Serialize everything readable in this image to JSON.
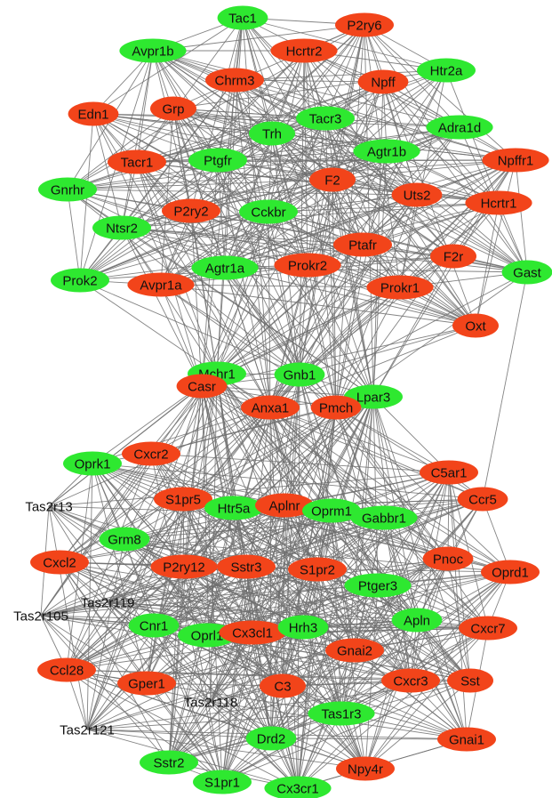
{
  "colors": {
    "up": "#f2441a",
    "down": "#2ee830",
    "edge": "#6e6e6e",
    "label": "#111111",
    "background": "#ffffff"
  },
  "nodes": [
    {
      "id": "Tac1",
      "color": "down"
    },
    {
      "id": "P2ry6",
      "color": "up"
    },
    {
      "id": "Hcrtr2",
      "color": "up"
    },
    {
      "id": "Avpr1b",
      "color": "down"
    },
    {
      "id": "Chrm3",
      "color": "up"
    },
    {
      "id": "Npff",
      "color": "up"
    },
    {
      "id": "Htr2a",
      "color": "down"
    },
    {
      "id": "Edn1",
      "color": "up"
    },
    {
      "id": "Grp",
      "color": "up"
    },
    {
      "id": "Tacr3",
      "color": "down"
    },
    {
      "id": "Adra1d",
      "color": "down"
    },
    {
      "id": "Trh",
      "color": "down"
    },
    {
      "id": "Agtr1b",
      "color": "down"
    },
    {
      "id": "Npffr1",
      "color": "up"
    },
    {
      "id": "Tacr1",
      "color": "up"
    },
    {
      "id": "Ptgfr",
      "color": "down"
    },
    {
      "id": "F2",
      "color": "up"
    },
    {
      "id": "Gnrhr",
      "color": "down"
    },
    {
      "id": "Uts2",
      "color": "up"
    },
    {
      "id": "Hcrtr1",
      "color": "up"
    },
    {
      "id": "P2ry2",
      "color": "up"
    },
    {
      "id": "Cckbr",
      "color": "down"
    },
    {
      "id": "Ntsr2",
      "color": "down"
    },
    {
      "id": "Ptafr",
      "color": "up"
    },
    {
      "id": "F2r",
      "color": "up"
    },
    {
      "id": "Gast",
      "color": "down"
    },
    {
      "id": "Prok2",
      "color": "down"
    },
    {
      "id": "Agtr1a",
      "color": "down"
    },
    {
      "id": "Prokr2",
      "color": "up"
    },
    {
      "id": "Avpr1a",
      "color": "up"
    },
    {
      "id": "Prokr1",
      "color": "up"
    },
    {
      "id": "Oxt",
      "color": "up"
    },
    {
      "id": "Mchr1",
      "color": "down"
    },
    {
      "id": "Gnb1",
      "color": "down"
    },
    {
      "id": "Casr",
      "color": "up"
    },
    {
      "id": "Lpar3",
      "color": "down"
    },
    {
      "id": "Anxa1",
      "color": "up"
    },
    {
      "id": "Pmch",
      "color": "up"
    },
    {
      "id": "Oprk1",
      "color": "down"
    },
    {
      "id": "Cxcr2",
      "color": "up"
    },
    {
      "id": "C5ar1",
      "color": "up"
    },
    {
      "id": "Tas2r13",
      "color": "none"
    },
    {
      "id": "S1pr5",
      "color": "up"
    },
    {
      "id": "Htr5a",
      "color": "down"
    },
    {
      "id": "Aplnr",
      "color": "up"
    },
    {
      "id": "Oprm1",
      "color": "down"
    },
    {
      "id": "Ccr5",
      "color": "up"
    },
    {
      "id": "Gabbr1",
      "color": "down"
    },
    {
      "id": "Grm8",
      "color": "down"
    },
    {
      "id": "Cxcl2",
      "color": "up"
    },
    {
      "id": "P2ry12",
      "color": "up"
    },
    {
      "id": "Sstr3",
      "color": "up"
    },
    {
      "id": "S1pr2",
      "color": "up"
    },
    {
      "id": "Pnoc",
      "color": "up"
    },
    {
      "id": "Oprd1",
      "color": "up"
    },
    {
      "id": "Ptger3",
      "color": "down"
    },
    {
      "id": "Tas2r119",
      "color": "none"
    },
    {
      "id": "Tas2r105",
      "color": "none"
    },
    {
      "id": "Cnr1",
      "color": "down"
    },
    {
      "id": "Oprl1",
      "color": "down"
    },
    {
      "id": "Cx3cl1",
      "color": "up"
    },
    {
      "id": "Hrh3",
      "color": "down"
    },
    {
      "id": "Apln",
      "color": "down"
    },
    {
      "id": "Cxcr7",
      "color": "up"
    },
    {
      "id": "Gnai2",
      "color": "up"
    },
    {
      "id": "Ccl28",
      "color": "up"
    },
    {
      "id": "Gper1",
      "color": "up"
    },
    {
      "id": "C3",
      "color": "up"
    },
    {
      "id": "Cxcr3",
      "color": "up"
    },
    {
      "id": "Sst",
      "color": "up"
    },
    {
      "id": "Tas2r118",
      "color": "none"
    },
    {
      "id": "Tas1r3",
      "color": "down"
    },
    {
      "id": "Tas2r121",
      "color": "none"
    },
    {
      "id": "Drd2",
      "color": "down"
    },
    {
      "id": "Gnai1",
      "color": "up"
    },
    {
      "id": "Sstr2",
      "color": "down"
    },
    {
      "id": "Npy4r",
      "color": "up"
    },
    {
      "id": "S1pr1",
      "color": "down"
    },
    {
      "id": "Cx3cr1",
      "color": "down"
    }
  ]
}
